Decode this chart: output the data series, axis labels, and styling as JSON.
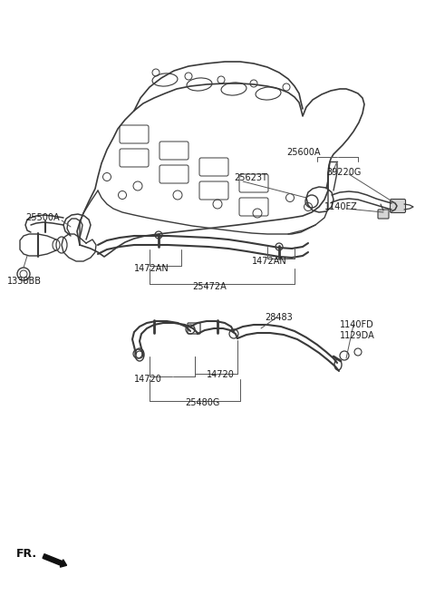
{
  "bg_color": "#ffffff",
  "line_color": "#3a3a3a",
  "fig_width": 4.8,
  "fig_height": 6.57,
  "dpi": 100,
  "font_size": 7.0,
  "font_size_sm": 6.5,
  "label_color": "#1a1a1a",
  "thin_color": "#555555",
  "labels": [
    [
      "25600A",
      316,
      168,
      7.0
    ],
    [
      "25623T",
      258,
      196,
      7.0
    ],
    [
      "39220G",
      358,
      188,
      7.0
    ],
    [
      "1140FZ",
      356,
      226,
      7.0
    ],
    [
      "25500A",
      28,
      238,
      7.0
    ],
    [
      "1338BB",
      10,
      305,
      7.0
    ],
    [
      "1472AN",
      148,
      293,
      7.0
    ],
    [
      "1472AN",
      278,
      284,
      7.0
    ],
    [
      "25472A",
      213,
      312,
      7.0
    ],
    [
      "28483",
      295,
      347,
      7.0
    ],
    [
      "1140FD",
      375,
      355,
      7.0
    ],
    [
      "1129DA",
      375,
      368,
      7.0
    ],
    [
      "14720",
      152,
      413,
      7.0
    ],
    [
      "14720",
      232,
      410,
      7.0
    ],
    [
      "25480G",
      206,
      440,
      7.0
    ]
  ]
}
